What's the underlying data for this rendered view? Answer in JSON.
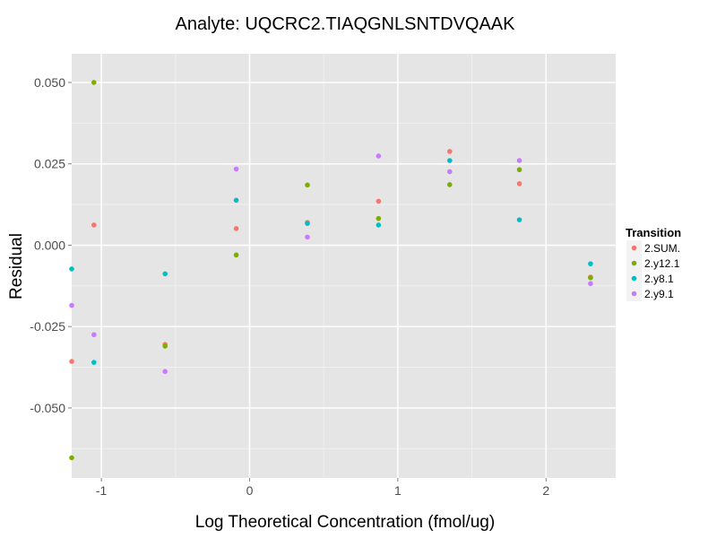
{
  "chart_data": {
    "type": "scatter",
    "title": "Analyte: UQCRC2.TIAQGNLSNTDVQAAK",
    "xlabel": "Log Theoretical Concentration (fmol/ug)",
    "ylabel": "Residual",
    "xlim": [
      -1.2,
      2.47
    ],
    "ylim": [
      -0.0715,
      0.0588
    ],
    "x_ticks": [
      -1,
      0,
      1,
      2
    ],
    "x_tick_labels": [
      "-1",
      "0",
      "1",
      "2"
    ],
    "y_ticks": [
      -0.05,
      -0.025,
      0.0,
      0.025,
      0.05
    ],
    "y_tick_labels": [
      "-0.050",
      "-0.025",
      "0.000",
      "0.025",
      "0.050"
    ],
    "grid": true,
    "legend": {
      "title": "Transition",
      "position": "right"
    },
    "series": [
      {
        "name": "2.SUM.",
        "color": "#F8766D",
        "points": [
          {
            "x": -1.2,
            "y": -0.0357
          },
          {
            "x": -1.05,
            "y": 0.0062
          },
          {
            "x": -0.57,
            "y": -0.0305
          },
          {
            "x": -0.09,
            "y": 0.0051
          },
          {
            "x": 0.39,
            "y": 0.007
          },
          {
            "x": 0.87,
            "y": 0.0135
          },
          {
            "x": 1.35,
            "y": 0.0288
          },
          {
            "x": 1.82,
            "y": 0.0189
          },
          {
            "x": 2.3,
            "y": -0.0098
          }
        ]
      },
      {
        "name": "2.y12.1",
        "color": "#7CAE00",
        "points": [
          {
            "x": -1.2,
            "y": -0.0653
          },
          {
            "x": -1.05,
            "y": 0.05
          },
          {
            "x": -0.57,
            "y": -0.031
          },
          {
            "x": -0.09,
            "y": -0.003
          },
          {
            "x": 0.39,
            "y": 0.0185
          },
          {
            "x": 0.87,
            "y": 0.0082
          },
          {
            "x": 1.35,
            "y": 0.0186
          },
          {
            "x": 1.82,
            "y": 0.0232
          },
          {
            "x": 2.3,
            "y": -0.01
          }
        ]
      },
      {
        "name": "2.y8.1",
        "color": "#00BFC4",
        "points": [
          {
            "x": -1.2,
            "y": -0.0073
          },
          {
            "x": -1.05,
            "y": -0.036
          },
          {
            "x": -0.57,
            "y": -0.0088
          },
          {
            "x": -0.09,
            "y": 0.0138
          },
          {
            "x": 0.39,
            "y": 0.0067
          },
          {
            "x": 0.87,
            "y": 0.0062
          },
          {
            "x": 1.35,
            "y": 0.026
          },
          {
            "x": 1.82,
            "y": 0.0078
          },
          {
            "x": 2.3,
            "y": -0.0057
          }
        ]
      },
      {
        "name": "2.y9.1",
        "color": "#C77CFF",
        "points": [
          {
            "x": -1.2,
            "y": -0.0185
          },
          {
            "x": -1.05,
            "y": -0.0275
          },
          {
            "x": -0.57,
            "y": -0.0388
          },
          {
            "x": -0.09,
            "y": 0.0234
          },
          {
            "x": 0.39,
            "y": 0.0025
          },
          {
            "x": 0.87,
            "y": 0.0274
          },
          {
            "x": 1.35,
            "y": 0.0226
          },
          {
            "x": 1.82,
            "y": 0.026
          },
          {
            "x": 2.3,
            "y": -0.0118
          }
        ]
      }
    ]
  }
}
